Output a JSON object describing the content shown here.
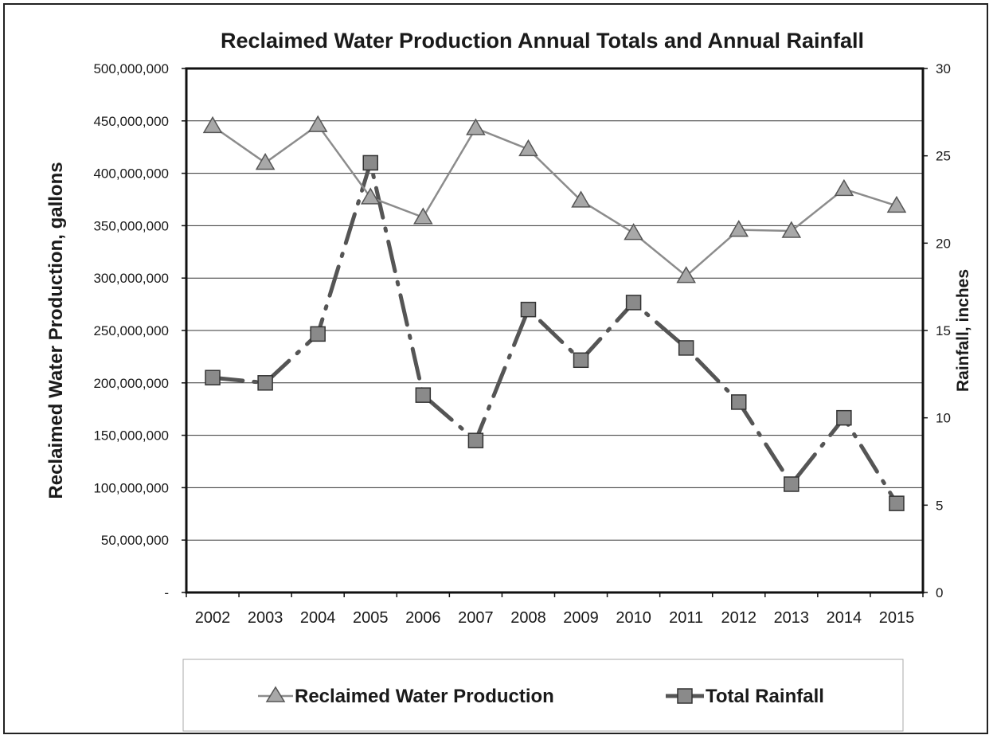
{
  "chart_data": {
    "type": "line",
    "title": "Reclaimed Water Production Annual Totals and Annual Rainfall",
    "ylabel": "Reclaimed Water Production, gallons",
    "y2label": "Rainfall, inches",
    "categories": [
      "2002",
      "2003",
      "2004",
      "2005",
      "2006",
      "2007",
      "2008",
      "2009",
      "2010",
      "2011",
      "2012",
      "2013",
      "2014",
      "2015"
    ],
    "ylim": [
      0,
      500000000
    ],
    "y2lim": [
      0,
      30
    ],
    "y_ticks": [
      "500,000,000",
      "450,000,000",
      "400,000,000",
      "350,000,000",
      "300,000,000",
      "250,000,000",
      "200,000,000",
      "150,000,000",
      "100,000,000",
      "50,000,000",
      "-"
    ],
    "y2_ticks": [
      "30",
      "25",
      "20",
      "15",
      "10",
      "5",
      "0"
    ],
    "grid": true,
    "legend_position": "bottom",
    "series": [
      {
        "name": "Reclaimed Water Production",
        "axis": "left",
        "marker": "triangle",
        "color": "#8c8c8c",
        "values": [
          445000000,
          410000000,
          446000000,
          377000000,
          358000000,
          443000000,
          423000000,
          374000000,
          343000000,
          302000000,
          346000000,
          345000000,
          385000000,
          369000000
        ]
      },
      {
        "name": "Total Rainfall",
        "axis": "right",
        "marker": "square",
        "color": "#555555",
        "values": [
          12.3,
          12.0,
          14.8,
          24.6,
          11.3,
          8.7,
          16.2,
          13.3,
          16.6,
          14.0,
          10.9,
          6.2,
          10.0,
          5.1
        ]
      }
    ]
  }
}
